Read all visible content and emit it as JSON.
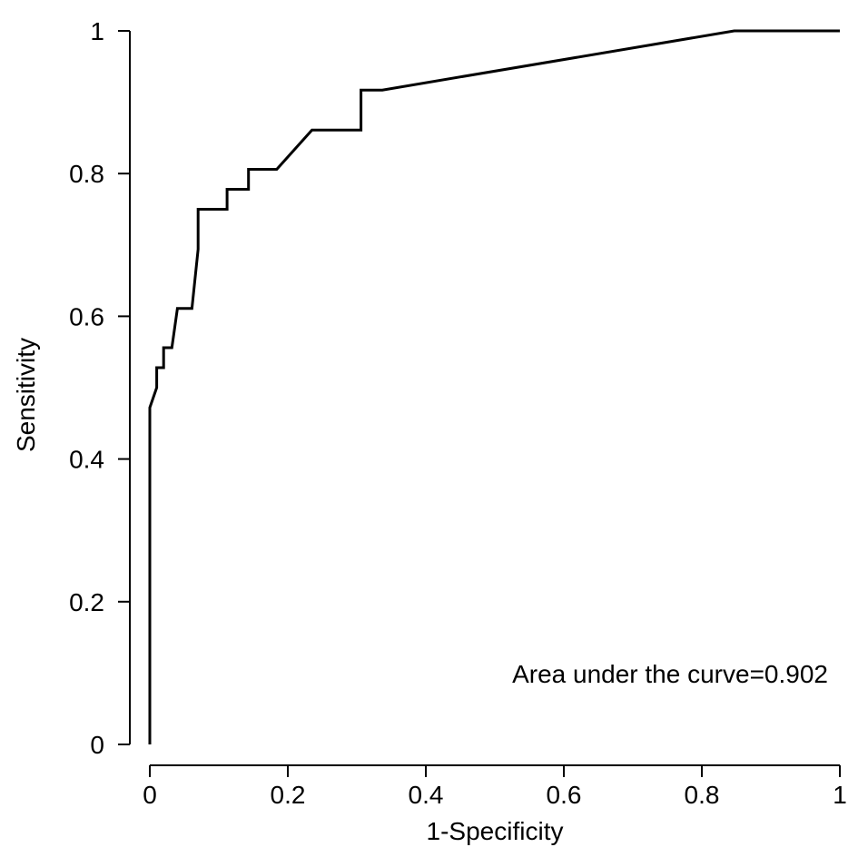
{
  "chart_data": {
    "type": "line",
    "title": "",
    "xlabel": "1-Specificity",
    "ylabel": "Sensitivity",
    "xlim": [
      0,
      1
    ],
    "ylim": [
      0,
      1
    ],
    "xticks": [
      0,
      0.2,
      0.4,
      0.6,
      0.8,
      1
    ],
    "yticks": [
      0,
      0.2,
      0.4,
      0.6,
      0.8,
      1
    ],
    "xtick_labels": [
      "0",
      "0.2",
      "0.4",
      "0.6",
      "0.8",
      "1"
    ],
    "ytick_labels": [
      "0",
      "0.2",
      "0.4",
      "0.6",
      "0.8",
      "1"
    ],
    "grid": false,
    "line_color": "#000000",
    "series": [
      {
        "x": [
          0,
          0,
          0.01,
          0.01,
          0.02,
          0.02,
          0.032,
          0.04,
          0.061,
          0.07,
          0.07,
          0.112,
          0.112,
          0.143,
          0.143,
          0.184,
          0.235,
          0.306,
          0.306,
          0.337,
          0.847,
          1
        ],
        "y": [
          0,
          0.472,
          0.5,
          0.528,
          0.528,
          0.556,
          0.556,
          0.611,
          0.611,
          0.694,
          0.75,
          0.75,
          0.778,
          0.778,
          0.806,
          0.806,
          0.861,
          0.861,
          0.917,
          0.917,
          1,
          1
        ]
      }
    ],
    "annotations": [
      "Area under the curve=0.902"
    ]
  }
}
